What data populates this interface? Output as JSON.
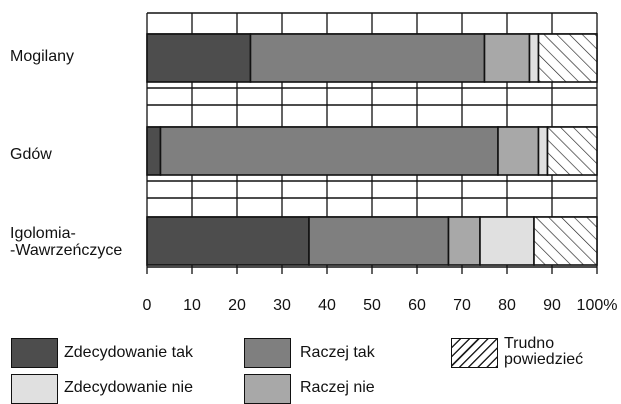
{
  "chart_data": {
    "type": "bar",
    "orientation": "horizontal",
    "stacked": true,
    "normalized_percent": true,
    "categories": [
      "Mogilany",
      "Gdów",
      "Igolomia-\n-Wawrzeńczyce"
    ],
    "series": [
      {
        "name": "Zdecydowanie tak",
        "values": [
          23,
          3,
          36
        ],
        "color": "#4d4d4d"
      },
      {
        "name": "Raczej tak",
        "values": [
          52,
          75,
          31
        ],
        "color": "#7f7f7f"
      },
      {
        "name": "Raczej nie",
        "values": [
          10,
          9,
          7
        ],
        "color": "#a8a8a8"
      },
      {
        "name": "Zdecydowanie nie",
        "values": [
          2,
          2,
          12
        ],
        "color": "#e0e0e0"
      },
      {
        "name": "Trudno powiedzieć",
        "values": [
          13,
          11,
          14
        ],
        "pattern": "diagonal-hatch"
      }
    ],
    "xticks": [
      "0",
      "10",
      "20",
      "30",
      "40",
      "50",
      "60",
      "70",
      "80",
      "90",
      "100%"
    ],
    "xlim": [
      0,
      100
    ],
    "grid": true,
    "legend_position": "bottom",
    "legend_labels": {
      "zdecydowanie_tak": "Zdecydowanie tak",
      "raczej_tak": "Raczej tak",
      "trudno": "Trudno\npowiedzieć",
      "zdecydowanie_nie": "Zdecydowanie nie",
      "raczej_nie": "Raczej nie"
    }
  }
}
